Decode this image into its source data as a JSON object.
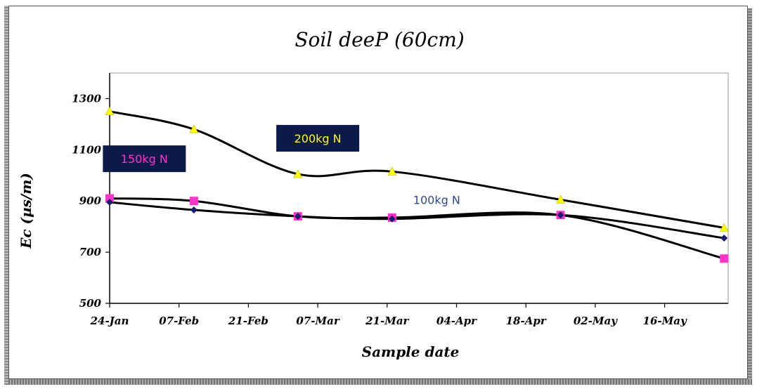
{
  "chart_data": {
    "type": "line",
    "title": "Soil deeP (60cm)",
    "xlabel": "Sample date",
    "ylabel": "Ec (µs/m)",
    "x_ticks": [
      "24-Jan",
      "07-Feb",
      "21-Feb",
      "07-Mar",
      "21-Mar",
      "04-Apr",
      "18-Apr",
      "02-May",
      "16-May"
    ],
    "y_ticks": [
      500,
      700,
      900,
      1100,
      1300
    ],
    "ylim": [
      500,
      1400
    ],
    "x_dates": [
      "24-Jan",
      "07-Feb",
      "21-Feb",
      "07-Mar",
      "21-Mar",
      "04-Apr",
      "18-Apr",
      "02-May",
      "16-May"
    ],
    "series": [
      {
        "name": "200kg N",
        "color": "#ffff00",
        "marker": "triangle",
        "x": [
          "24-Jan",
          "10-Feb",
          "03-Mar",
          "22-Mar",
          "25-Apr",
          "28-May"
        ],
        "values": [
          1250,
          1180,
          1005,
          1015,
          905,
          795
        ]
      },
      {
        "name": "150kg N",
        "color": "#ff33cc",
        "marker": "square",
        "x": [
          "24-Jan",
          "10-Feb",
          "03-Mar",
          "22-Mar",
          "25-Apr",
          "28-May"
        ],
        "values": [
          910,
          900,
          840,
          835,
          845,
          675
        ]
      },
      {
        "name": "100kg N",
        "color": "#1a1a6e",
        "marker": "diamond",
        "x": [
          "24-Jan",
          "10-Feb",
          "03-Mar",
          "22-Mar",
          "25-Apr",
          "28-May"
        ],
        "values": [
          895,
          865,
          840,
          830,
          845,
          755
        ]
      }
    ],
    "annotations": [
      {
        "text": "200kg N",
        "style": "box",
        "text_color": "#ffff00",
        "bg": "#0c1a4a",
        "x": "07-Mar",
        "y": 1145
      },
      {
        "text": "150kg N",
        "style": "box",
        "text_color": "#ff33cc",
        "bg": "#0c1a4a",
        "x": "31-Jan",
        "y": 1065
      },
      {
        "text": "100kg N",
        "style": "plain",
        "text_color": "#2e4a8a",
        "x": "31-Mar",
        "y": 905
      }
    ],
    "grid": false,
    "legend": "none"
  }
}
